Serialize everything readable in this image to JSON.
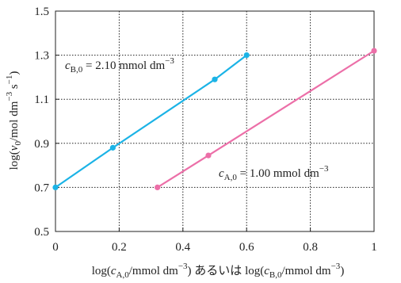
{
  "chart_data": {
    "type": "line",
    "xlim": [
      0,
      1
    ],
    "ylim": [
      0.5,
      1.5
    ],
    "x_ticks": [
      "0",
      "0.2",
      "0.4",
      "0.6",
      "0.8",
      "1"
    ],
    "y_ticks": [
      "0.5",
      "0.7",
      "0.9",
      "1.1",
      "1.3",
      "1.5"
    ],
    "x_tick_values": [
      0,
      0.2,
      0.4,
      0.6,
      0.8,
      1.0
    ],
    "y_tick_values": [
      0.5,
      0.7,
      0.9,
      1.1,
      1.3,
      1.5
    ],
    "grid": true,
    "xlabel": {
      "log_open": "log(",
      "c": "c",
      "sub_a": "A,0",
      "unit_mid": "/mmol dm",
      "sup": "−3",
      "close": ")",
      "joiner": " あるいは ",
      "sub_b": "B,0"
    },
    "ylabel": {
      "log_open": "log(",
      "v": "v",
      "sub": "0",
      "unit_a": "/mol dm",
      "sup_a": "−3",
      "unit_b": " s",
      "sup_b": "−1",
      "close": ")"
    },
    "series": [
      {
        "color": "#1bb3e6",
        "x": [
          0.0,
          0.18,
          0.5,
          0.6
        ],
        "y": [
          0.7,
          0.88,
          1.19,
          1.3
        ],
        "annotation": {
          "c": "c",
          "sub": "B,0",
          "value": " = 2.10 mmol dm",
          "sup": "−3"
        }
      },
      {
        "color": "#ec6fa8",
        "x": [
          0.32,
          0.48,
          1.0
        ],
        "y": [
          0.7,
          0.845,
          1.32
        ],
        "annotation": {
          "c": "c",
          "sub": "A,0",
          "value": " = 1.00 mmol dm",
          "sup": "−3"
        }
      }
    ]
  }
}
